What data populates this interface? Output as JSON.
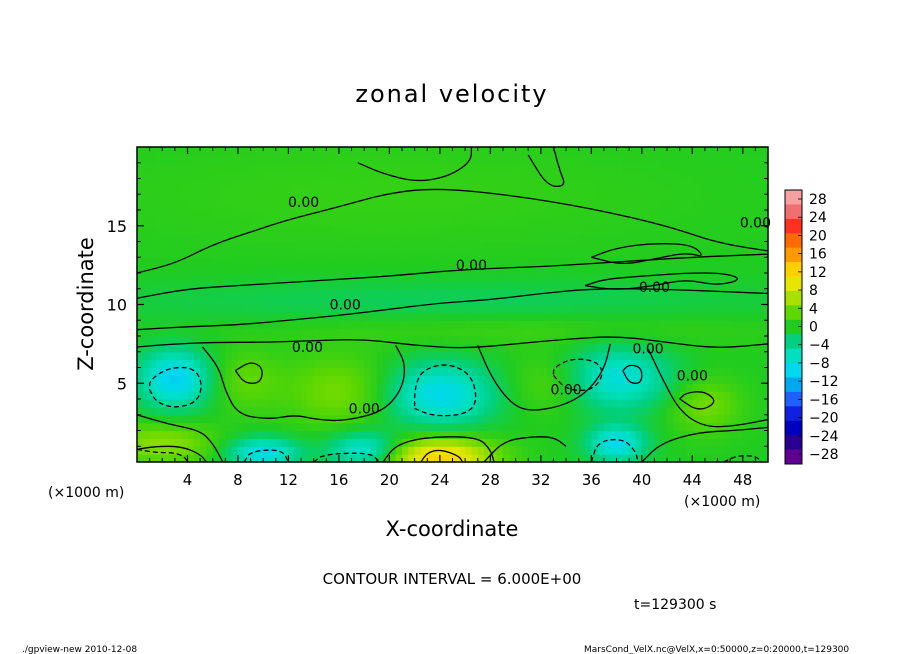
{
  "chart_data": {
    "type": "heatmap",
    "title": "zonal velocity",
    "xlabel": "X-coordinate",
    "ylabel": "Z-coordinate",
    "x_unit_left": "(×1000 m)",
    "x_unit_right": "(×1000 m)",
    "xlim": [
      0,
      50
    ],
    "ylim": [
      0,
      20
    ],
    "x_ticks": [
      4,
      8,
      12,
      16,
      20,
      24,
      28,
      32,
      36,
      40,
      44,
      48
    ],
    "y_ticks": [
      5,
      10,
      15
    ],
    "colorbar": {
      "labels": [
        28,
        24,
        20,
        16,
        12,
        8,
        4,
        0,
        -4,
        -8,
        -12,
        -16,
        -20,
        -24,
        -28
      ],
      "colors": [
        "#f6a0a0",
        "#f07070",
        "#ff3020",
        "#ff6a00",
        "#ff9a00",
        "#ffd000",
        "#e6e600",
        "#a8e000",
        "#60d800",
        "#20cc20",
        "#00d080",
        "#00e0c0",
        "#00d8f0",
        "#00a8f0",
        "#2060ff",
        "#1020e0",
        "#0000c0",
        "#2a0090",
        "#600090"
      ]
    },
    "contour_interval_text": "CONTOUR INTERVAL = 6.000E+00",
    "contour_labels": [
      "0.00",
      "0.00",
      "0.00",
      "0.00",
      "0.00",
      "0.00",
      "0.00",
      "0.00",
      "0.00",
      "0.00"
    ],
    "time_label": "t=129300 s",
    "field": [
      {
        "x": 24,
        "z": 0.3,
        "value": 12,
        "sx": 3.0,
        "sz": 0.9
      },
      {
        "x": 2,
        "z": 1.2,
        "value": 5,
        "sx": 3.0,
        "sz": 0.9
      },
      {
        "x": 16,
        "z": 4.5,
        "value": 4,
        "sx": 3.0,
        "sz": 1.6
      },
      {
        "x": 8.5,
        "z": 5.2,
        "value": 3,
        "sx": 2.0,
        "sz": 1.3
      },
      {
        "x": 33,
        "z": 5.0,
        "value": 3,
        "sx": 2.4,
        "sz": 1.3
      },
      {
        "x": 45,
        "z": 3.6,
        "value": 4,
        "sx": 2.0,
        "sz": 1.2
      },
      {
        "x": 3,
        "z": 5.3,
        "value": -10,
        "sx": 2.0,
        "sz": 1.3
      },
      {
        "x": 24,
        "z": 4.3,
        "value": -9,
        "sx": 3.0,
        "sz": 1.4
      },
      {
        "x": 38,
        "z": 5.3,
        "value": -8,
        "sx": 3.0,
        "sz": 1.4
      },
      {
        "x": 10,
        "z": 0.6,
        "value": -9,
        "sx": 2.0,
        "sz": 0.7
      },
      {
        "x": 38,
        "z": 1.2,
        "value": -9,
        "sx": 1.6,
        "sz": 0.8
      },
      {
        "x": 18,
        "z": 0.8,
        "value": -8,
        "sx": 2.0,
        "sz": 0.8
      },
      {
        "x": 24,
        "z": 10.2,
        "value": -2,
        "sx": 20.0,
        "sz": 1.0
      },
      {
        "x": 30,
        "z": 8.5,
        "value": 1.5,
        "sx": 15.0,
        "sz": 0.8
      },
      {
        "x": 20,
        "z": 17.0,
        "value": 1.0,
        "sx": 18.0,
        "sz": 2.5
      }
    ],
    "contours": [
      {
        "style": "solid",
        "points": [
          [
            0,
            12
          ],
          [
            3,
            12.6
          ],
          [
            6,
            13.8
          ],
          [
            9,
            14.6
          ],
          [
            12,
            15.4
          ],
          [
            16,
            16.2
          ],
          [
            20,
            17.1
          ],
          [
            24,
            17.4
          ],
          [
            30,
            16.9
          ],
          [
            36,
            16.1
          ],
          [
            42,
            15.0
          ],
          [
            46,
            13.9
          ],
          [
            50,
            13.4
          ]
        ]
      },
      {
        "style": "solid",
        "points": [
          [
            0,
            10.4
          ],
          [
            4,
            11.0
          ],
          [
            8,
            11.2
          ],
          [
            12,
            11.4
          ],
          [
            16,
            11.6
          ],
          [
            20,
            11.8
          ],
          [
            24,
            12.1
          ],
          [
            28,
            12.3
          ],
          [
            32,
            12.4
          ],
          [
            36,
            12.6
          ],
          [
            40,
            12.8
          ],
          [
            44,
            13.0
          ],
          [
            50,
            13.2
          ]
        ]
      },
      {
        "style": "solid",
        "points": [
          [
            0,
            8.4
          ],
          [
            4,
            8.6
          ],
          [
            8,
            8.7
          ],
          [
            12,
            9.0
          ],
          [
            16,
            9.3
          ],
          [
            20,
            9.7
          ],
          [
            24,
            10.1
          ],
          [
            28,
            10.3
          ],
          [
            32,
            10.7
          ],
          [
            36,
            11.0
          ],
          [
            40,
            11.0
          ],
          [
            44,
            10.9
          ],
          [
            50,
            10.7
          ]
        ]
      },
      {
        "style": "solid",
        "points": [
          [
            0,
            7.3
          ],
          [
            3,
            7.5
          ],
          [
            6,
            7.6
          ],
          [
            10,
            7.6
          ],
          [
            14,
            7.7
          ],
          [
            18,
            7.8
          ],
          [
            22,
            7.4
          ],
          [
            26,
            7.2
          ],
          [
            30,
            7.5
          ],
          [
            34,
            7.8
          ],
          [
            38,
            8.0
          ],
          [
            42,
            7.6
          ],
          [
            46,
            7.2
          ],
          [
            50,
            7.5
          ]
        ]
      },
      {
        "style": "solid",
        "points": [
          [
            5.2,
            7.3
          ],
          [
            6.5,
            6.0
          ],
          [
            7.0,
            4.5
          ],
          [
            8.0,
            3.0
          ],
          [
            10.5,
            2.7
          ],
          [
            12.5,
            3.0
          ],
          [
            14.2,
            2.7
          ],
          [
            16.5,
            2.6
          ],
          [
            19.5,
            3.2
          ],
          [
            21.0,
            4.6
          ],
          [
            21.3,
            6.2
          ],
          [
            20.5,
            7.4
          ]
        ]
      },
      {
        "style": "solid",
        "points": [
          [
            27.0,
            7.4
          ],
          [
            28.0,
            5.5
          ],
          [
            29.5,
            3.8
          ],
          [
            31.0,
            3.2
          ],
          [
            33.5,
            3.5
          ],
          [
            35.5,
            4.3
          ],
          [
            37.0,
            5.8
          ],
          [
            37.5,
            7.5
          ]
        ]
      },
      {
        "style": "solid",
        "points": [
          [
            40.5,
            7.2
          ],
          [
            41.5,
            5.5
          ],
          [
            43.0,
            3.2
          ],
          [
            45.0,
            2.2
          ],
          [
            47.5,
            2.3
          ],
          [
            50,
            2.7
          ]
        ]
      },
      {
        "style": "solid",
        "points": [
          [
            0,
            3.0
          ],
          [
            2.5,
            2.4
          ],
          [
            5.0,
            2.0
          ],
          [
            6.0,
            1.2
          ],
          [
            6.8,
            0
          ]
        ]
      },
      {
        "style": "solid",
        "points": [
          [
            19.5,
            0
          ],
          [
            20.5,
            1.1
          ],
          [
            23.0,
            1.6
          ],
          [
            27.0,
            1.6
          ],
          [
            28.0,
            0.8
          ],
          [
            28.3,
            0
          ]
        ]
      },
      {
        "style": "solid",
        "points": [
          [
            22.5,
            0
          ],
          [
            23.0,
            0.6
          ],
          [
            24.0,
            0.8
          ],
          [
            25.5,
            0.4
          ],
          [
            25.8,
            0
          ]
        ]
      },
      {
        "style": "solid",
        "points": [
          [
            40.0,
            0
          ],
          [
            41.5,
            1.2
          ],
          [
            44.5,
            1.9
          ],
          [
            47.5,
            2.0
          ],
          [
            50,
            2.2
          ]
        ]
      },
      {
        "style": "solid",
        "points": [
          [
            27.5,
            0
          ],
          [
            29.0,
            1.3
          ],
          [
            31.0,
            1.6
          ],
          [
            33.0,
            1.6
          ],
          [
            34.0,
            1.0
          ]
        ]
      },
      {
        "style": "solid",
        "points": [
          [
            0,
            0.8
          ],
          [
            1.5,
            1.0
          ],
          [
            3.5,
            1.0
          ],
          [
            5.0,
            0.5
          ],
          [
            5.5,
            0
          ]
        ]
      },
      {
        "style": "solid",
        "points": [
          [
            43.0,
            4.0
          ],
          [
            44.5,
            3.2
          ],
          [
            46.0,
            3.8
          ],
          [
            45.0,
            4.5
          ],
          [
            43.5,
            4.4
          ],
          [
            43.0,
            4.0
          ]
        ]
      },
      {
        "style": "solid",
        "points": [
          [
            7.8,
            5.8
          ],
          [
            8.5,
            5.0
          ],
          [
            9.8,
            5.0
          ],
          [
            10.0,
            6.0
          ],
          [
            9.0,
            6.4
          ],
          [
            7.8,
            5.8
          ]
        ]
      },
      {
        "style": "solid",
        "points": [
          [
            38.5,
            5.8
          ],
          [
            39.0,
            5.0
          ],
          [
            40.0,
            5.0
          ],
          [
            40.0,
            6.0
          ],
          [
            39.0,
            6.2
          ],
          [
            38.5,
            5.8
          ]
        ]
      },
      {
        "style": "solid",
        "points": [
          [
            17.5,
            19.0
          ],
          [
            19.5,
            18.3
          ],
          [
            22.0,
            17.8
          ],
          [
            24.0,
            18.0
          ],
          [
            25.5,
            18.5
          ],
          [
            26.5,
            19.2
          ],
          [
            26.5,
            20
          ]
        ]
      },
      {
        "style": "solid",
        "points": [
          [
            31.0,
            19.5
          ],
          [
            32.5,
            17.5
          ],
          [
            34.0,
            17.5
          ],
          [
            33.5,
            18.5
          ],
          [
            33.0,
            20
          ]
        ]
      },
      {
        "style": "solid",
        "points": [
          [
            36.0,
            13.0
          ],
          [
            38.5,
            12.5
          ],
          [
            41.0,
            12.9
          ],
          [
            43.5,
            13.3
          ],
          [
            45.0,
            13.0
          ],
          [
            44.0,
            13.8
          ],
          [
            41.0,
            13.9
          ],
          [
            38.0,
            13.6
          ],
          [
            36.0,
            13.0
          ]
        ]
      },
      {
        "style": "solid",
        "points": [
          [
            35.5,
            11.2
          ],
          [
            38.0,
            10.9
          ],
          [
            41.0,
            11.2
          ],
          [
            43.5,
            11.6
          ],
          [
            46.0,
            11.2
          ],
          [
            48.0,
            11.6
          ],
          [
            46.5,
            12.0
          ],
          [
            43.5,
            12.0
          ],
          [
            40.0,
            11.8
          ],
          [
            37.0,
            11.6
          ],
          [
            35.5,
            11.2
          ]
        ]
      },
      {
        "style": "dashed",
        "points": [
          [
            1.0,
            4.6
          ],
          [
            1.5,
            3.8
          ],
          [
            3.0,
            3.4
          ],
          [
            4.8,
            3.8
          ],
          [
            5.2,
            5.0
          ],
          [
            4.5,
            6.0
          ],
          [
            2.5,
            6.0
          ],
          [
            1.0,
            5.2
          ],
          [
            1.0,
            4.6
          ]
        ]
      },
      {
        "style": "dashed",
        "points": [
          [
            22.0,
            3.4
          ],
          [
            23.5,
            2.9
          ],
          [
            26.0,
            3.0
          ],
          [
            27.0,
            3.8
          ],
          [
            26.5,
            5.6
          ],
          [
            24.5,
            6.3
          ],
          [
            22.5,
            5.8
          ],
          [
            22.0,
            4.6
          ],
          [
            22.0,
            3.4
          ]
        ]
      },
      {
        "style": "dashed",
        "points": [
          [
            33.0,
            5.5
          ],
          [
            34.0,
            4.6
          ],
          [
            36.0,
            4.5
          ],
          [
            37.0,
            5.5
          ],
          [
            36.5,
            6.4
          ],
          [
            34.5,
            6.6
          ],
          [
            33.0,
            6.0
          ],
          [
            33.0,
            5.5
          ]
        ]
      },
      {
        "style": "dashed",
        "points": [
          [
            0,
            0.8
          ],
          [
            1.5,
            0.6
          ],
          [
            3.0,
            0.6
          ],
          [
            3.8,
            0.3
          ],
          [
            4.0,
            0
          ]
        ]
      },
      {
        "style": "dashed",
        "points": [
          [
            8.5,
            0
          ],
          [
            9.0,
            0.7
          ],
          [
            11.5,
            0.8
          ],
          [
            12.0,
            0
          ]
        ]
      },
      {
        "style": "dashed",
        "points": [
          [
            14.0,
            0
          ],
          [
            14.8,
            0.5
          ],
          [
            18.5,
            0.6
          ],
          [
            19.2,
            0
          ]
        ]
      },
      {
        "style": "dashed",
        "points": [
          [
            36.0,
            0
          ],
          [
            36.5,
            1.3
          ],
          [
            38.5,
            1.5
          ],
          [
            39.5,
            0.7
          ],
          [
            39.7,
            0
          ]
        ]
      },
      {
        "style": "dashed",
        "points": [
          [
            46.5,
            0
          ],
          [
            47.5,
            0.4
          ],
          [
            49.0,
            0.4
          ],
          [
            49.5,
            0
          ]
        ]
      }
    ],
    "contour_label_positions": [
      [
        13.2,
        16.5
      ],
      [
        26.5,
        12.5
      ],
      [
        16.5,
        10.0
      ],
      [
        13.5,
        7.3
      ],
      [
        40.5,
        7.2
      ],
      [
        49.0,
        15.2
      ],
      [
        41.0,
        11.1
      ],
      [
        18.0,
        3.4
      ],
      [
        34.0,
        4.6
      ],
      [
        44.0,
        5.5
      ]
    ]
  },
  "footer": {
    "left": "./gpview-new 2010-12-08",
    "right": "MarsCond_VelX.nc@VelX,x=0:50000,z=0:20000,t=129300"
  }
}
